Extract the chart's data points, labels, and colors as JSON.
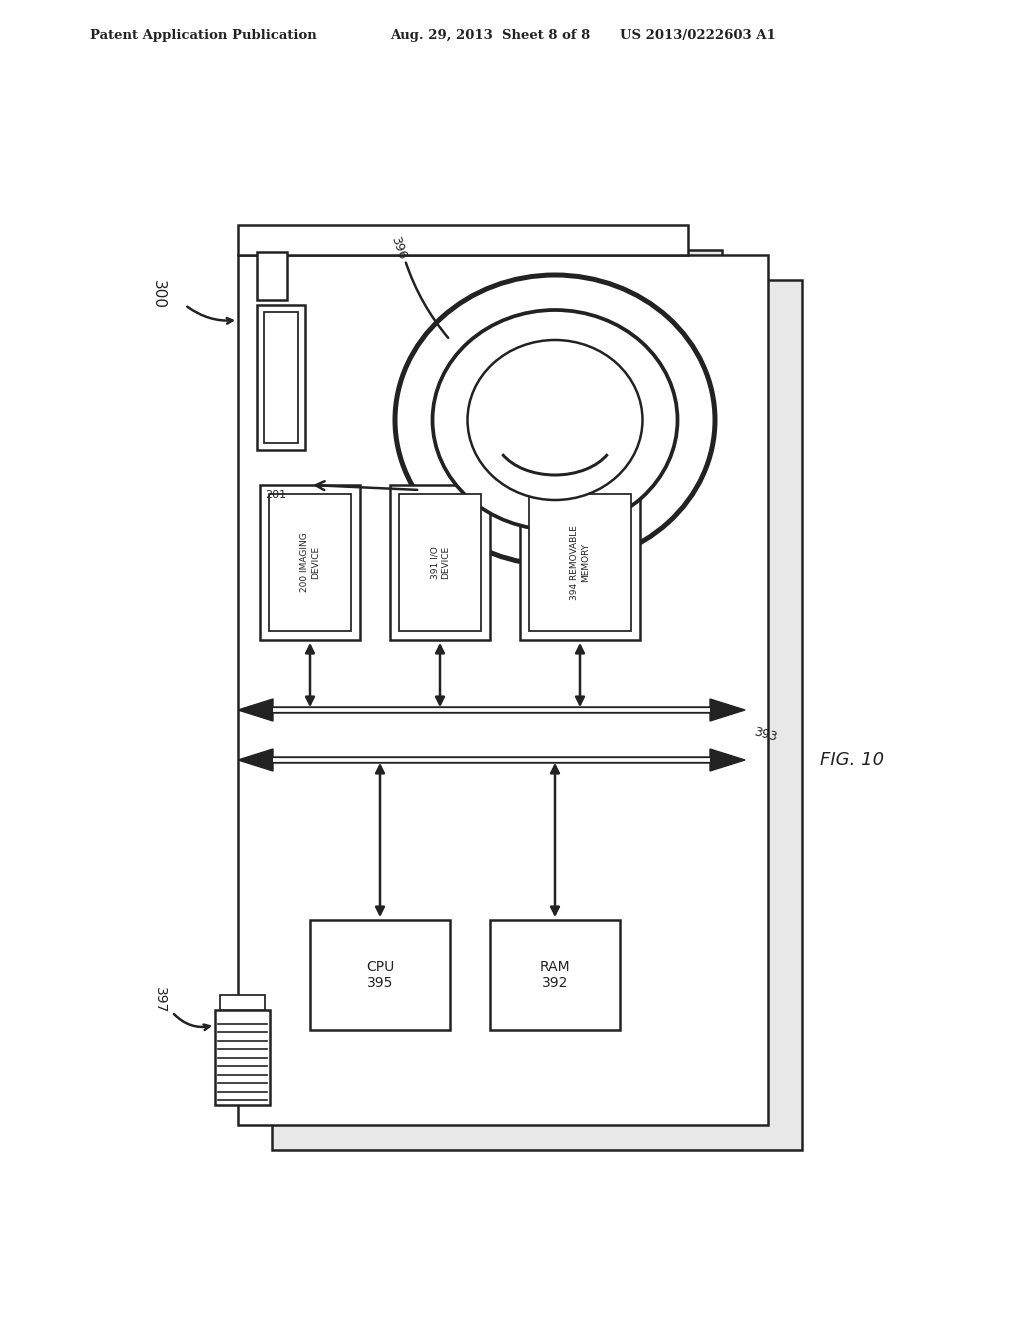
{
  "bg_color": "#ffffff",
  "line_color": "#222222",
  "header_text_left": "Patent Application Publication",
  "header_text_mid": "Aug. 29, 2013  Sheet 8 of 8",
  "header_text_right": "US 2013/0222603 A1",
  "fig_label": "FIG. 10",
  "label_300": "300",
  "label_396": "396",
  "label_201": "201",
  "label_200": "200",
  "label_200_sub": "IMAGING\nDEVICE",
  "label_391": "391",
  "label_391_sub": "I/O\nDEVICE",
  "label_394": "394",
  "label_394_sub": "REMOVABLE\nMEMORY",
  "label_393": "393",
  "label_397": "397",
  "label_cpu": "CPU\n395",
  "label_ram": "RAM\n392"
}
